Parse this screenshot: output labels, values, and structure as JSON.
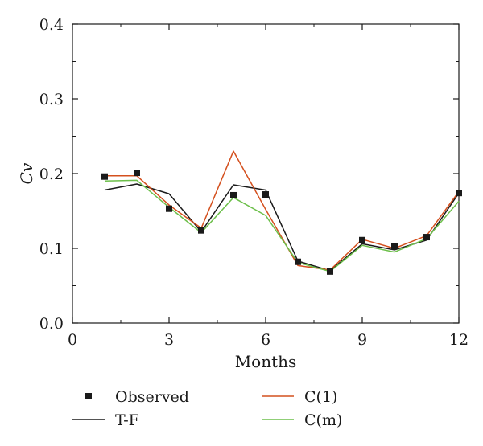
{
  "chart_data": {
    "type": "line",
    "title": "",
    "xlabel": "Months",
    "ylabel": "Cv",
    "xlim": [
      0,
      12
    ],
    "ylim": [
      0.0,
      0.4
    ],
    "xticks": [
      "0",
      "3",
      "6",
      "9",
      "12"
    ],
    "yticks": [
      "0.0",
      "0.1",
      "0.2",
      "0.3",
      "0.4"
    ],
    "grid": false,
    "legend_position": "bottom",
    "x": [
      1,
      2,
      3,
      4,
      5,
      6,
      7,
      8,
      9,
      10,
      11,
      12
    ],
    "series": [
      {
        "name": "Observed",
        "style": "markers",
        "color": "#1a1a1a",
        "values": [
          0.196,
          0.201,
          0.153,
          0.124,
          0.171,
          0.172,
          0.082,
          0.069,
          0.111,
          0.103,
          0.115,
          0.174
        ]
      },
      {
        "name": "T-F",
        "style": "line",
        "color": "#1a1a1a",
        "values": [
          0.178,
          0.186,
          0.173,
          0.122,
          0.185,
          0.178,
          0.083,
          0.07,
          0.106,
          0.098,
          0.111,
          0.174
        ]
      },
      {
        "name": "C(1)",
        "style": "line",
        "color": "#d4501e",
        "values": [
          0.197,
          0.197,
          0.158,
          0.127,
          0.23,
          0.152,
          0.077,
          0.071,
          0.112,
          0.1,
          0.117,
          0.176
        ]
      },
      {
        "name": "C(m)",
        "style": "line",
        "color": "#6cbf4a",
        "values": [
          0.19,
          0.191,
          0.155,
          0.121,
          0.168,
          0.144,
          0.081,
          0.069,
          0.104,
          0.095,
          0.113,
          0.163
        ]
      }
    ]
  }
}
